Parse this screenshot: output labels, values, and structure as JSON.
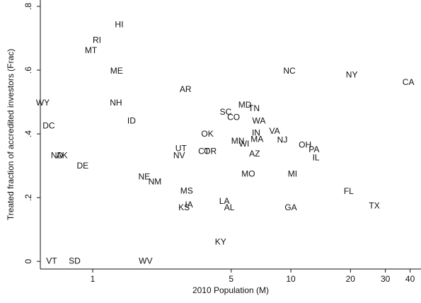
{
  "chart_data": {
    "type": "scatter",
    "x_label": "2010 Population (M)",
    "y_label": "Treated fraction of accredited investors (Frac)",
    "xlog": true,
    "xlim": [
      0.544,
      45.4
    ],
    "xticks": [
      1,
      5,
      10,
      20,
      30,
      40
    ],
    "ylim": [
      -0.024,
      0.82
    ],
    "yticks": [
      0,
      {
        "value": 0.2,
        "label": ".2"
      },
      {
        "value": 0.4,
        "label": ".4"
      },
      {
        "value": 0.6,
        "label": ".6"
      },
      {
        "value": 0.8,
        "label": ".8"
      }
    ],
    "series": [
      {
        "color": "#111111",
        "labels": [
          "HI",
          "RI",
          "MT",
          "ME",
          "NH",
          "ID",
          "AR",
          "WY",
          "DC",
          "NC",
          "NY",
          "CA",
          "MD",
          "TN",
          "SC",
          "CO",
          "WA",
          "OK",
          "IN",
          "VA",
          "MN",
          "MA",
          "WI",
          "NJ",
          "OH",
          "PA",
          "IL",
          "AZ",
          "UT",
          "NV",
          "CT",
          "OR",
          "ND",
          "AK",
          "DE",
          "NE",
          "NM",
          "MO",
          "MI",
          "FL",
          "TX",
          "MS",
          "LA",
          "AL",
          "IA",
          "KS",
          "GA",
          "KY",
          "VT",
          "SD",
          "WV"
        ],
        "x": [
          1.36,
          1.05,
          0.98,
          1.32,
          1.31,
          1.57,
          2.94,
          0.56,
          0.6,
          9.84,
          20.3,
          39.2,
          5.86,
          6.52,
          4.69,
          5.14,
          6.9,
          3.79,
          6.68,
          8.28,
          5.4,
          6.75,
          5.81,
          9.06,
          11.8,
          13.1,
          13.4,
          6.56,
          2.79,
          2.73,
          3.64,
          3.92,
          0.66,
          0.7,
          0.89,
          1.82,
          2.06,
          6.1,
          10.2,
          19.6,
          26.4,
          2.98,
          4.62,
          4.89,
          3.06,
          2.89,
          10.0,
          4.42,
          0.62,
          0.81,
          1.85
        ],
        "values": [
          0.742,
          0.693,
          0.66,
          0.596,
          0.496,
          0.44,
          0.538,
          0.496,
          0.424,
          0.596,
          0.584,
          0.56,
          0.489,
          0.478,
          0.467,
          0.451,
          0.44,
          0.398,
          0.402,
          0.407,
          0.376,
          0.382,
          0.367,
          0.38,
          0.364,
          0.349,
          0.324,
          0.336,
          0.353,
          0.331,
          0.344,
          0.344,
          0.331,
          0.331,
          0.298,
          0.264,
          0.249,
          0.273,
          0.273,
          0.218,
          0.173,
          0.22,
          0.187,
          0.167,
          0.176,
          0.167,
          0.167,
          0.06,
          0,
          0,
          0
        ]
      }
    ]
  }
}
